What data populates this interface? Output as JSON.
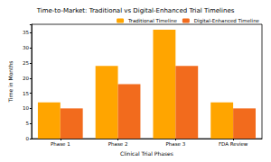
{
  "chart_data": {
    "type": "bar",
    "title": "Time-to-Market: Traditional vs Digital-Enhanced Trial Timelines",
    "x_label": "Clinical Trial Phases",
    "y_label": "Time in Months",
    "categories": [
      "Phase 1",
      "Phase 2",
      "Phase 3",
      "FDA Review"
    ],
    "series": [
      {
        "name": "Traditional Timeline",
        "color": "#ffa500",
        "values": [
          12,
          24,
          36,
          12
        ]
      },
      {
        "name": "Digital-Enhanced Timeline",
        "color": "#f26b1d",
        "values": [
          10,
          18,
          24,
          10
        ]
      }
    ],
    "ylim": [
      0,
      37.8
    ],
    "yticks": [
      0,
      5,
      10,
      15,
      20,
      25,
      30,
      35
    ],
    "grid": false,
    "legend": "upper right"
  }
}
